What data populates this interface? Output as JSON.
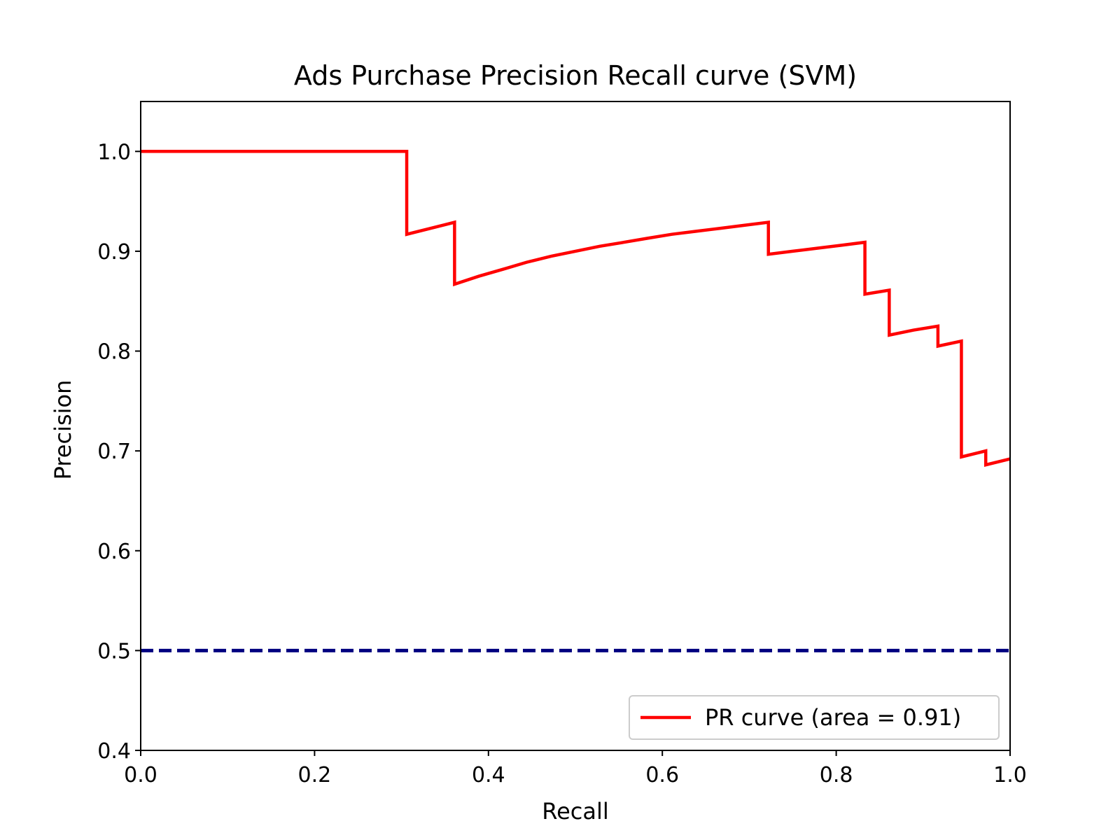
{
  "chart_data": {
    "type": "line",
    "title": "Ads Purchase Precision Recall curve (SVM)",
    "xlabel": "Recall",
    "ylabel": "Precision",
    "xlim": [
      0.0,
      1.0
    ],
    "ylim": [
      0.4,
      1.05
    ],
    "x_ticks": [
      "0.0",
      "0.2",
      "0.4",
      "0.6",
      "0.8",
      "1.0"
    ],
    "y_ticks": [
      "0.4",
      "0.5",
      "0.6",
      "0.7",
      "0.8",
      "0.9",
      "1.0"
    ],
    "grid": false,
    "legend_position": "lower-right",
    "series": [
      {
        "name": "PR curve (area = 0.91)",
        "color": "#ff0000",
        "style": "solid",
        "points": [
          [
            0.0,
            1.0
          ],
          [
            0.306,
            1.0
          ],
          [
            0.306,
            0.917
          ],
          [
            0.361,
            0.929
          ],
          [
            0.361,
            0.867
          ],
          [
            0.389,
            0.875
          ],
          [
            0.417,
            0.882
          ],
          [
            0.444,
            0.889
          ],
          [
            0.472,
            0.895
          ],
          [
            0.5,
            0.9
          ],
          [
            0.528,
            0.905
          ],
          [
            0.556,
            0.909
          ],
          [
            0.583,
            0.913
          ],
          [
            0.611,
            0.917
          ],
          [
            0.639,
            0.92
          ],
          [
            0.667,
            0.923
          ],
          [
            0.694,
            0.926
          ],
          [
            0.722,
            0.929
          ],
          [
            0.722,
            0.897
          ],
          [
            0.75,
            0.9
          ],
          [
            0.778,
            0.903
          ],
          [
            0.806,
            0.906
          ],
          [
            0.833,
            0.909
          ],
          [
            0.833,
            0.857
          ],
          [
            0.861,
            0.861
          ],
          [
            0.861,
            0.816
          ],
          [
            0.889,
            0.821
          ],
          [
            0.917,
            0.825
          ],
          [
            0.917,
            0.805
          ],
          [
            0.944,
            0.81
          ],
          [
            0.944,
            0.694
          ],
          [
            0.972,
            0.7
          ],
          [
            0.972,
            0.686
          ],
          [
            1.0,
            0.692
          ]
        ]
      },
      {
        "name": "",
        "color": "#000080",
        "style": "dashed",
        "points": [
          [
            0.0,
            0.5
          ],
          [
            1.0,
            0.5
          ]
        ]
      }
    ]
  }
}
